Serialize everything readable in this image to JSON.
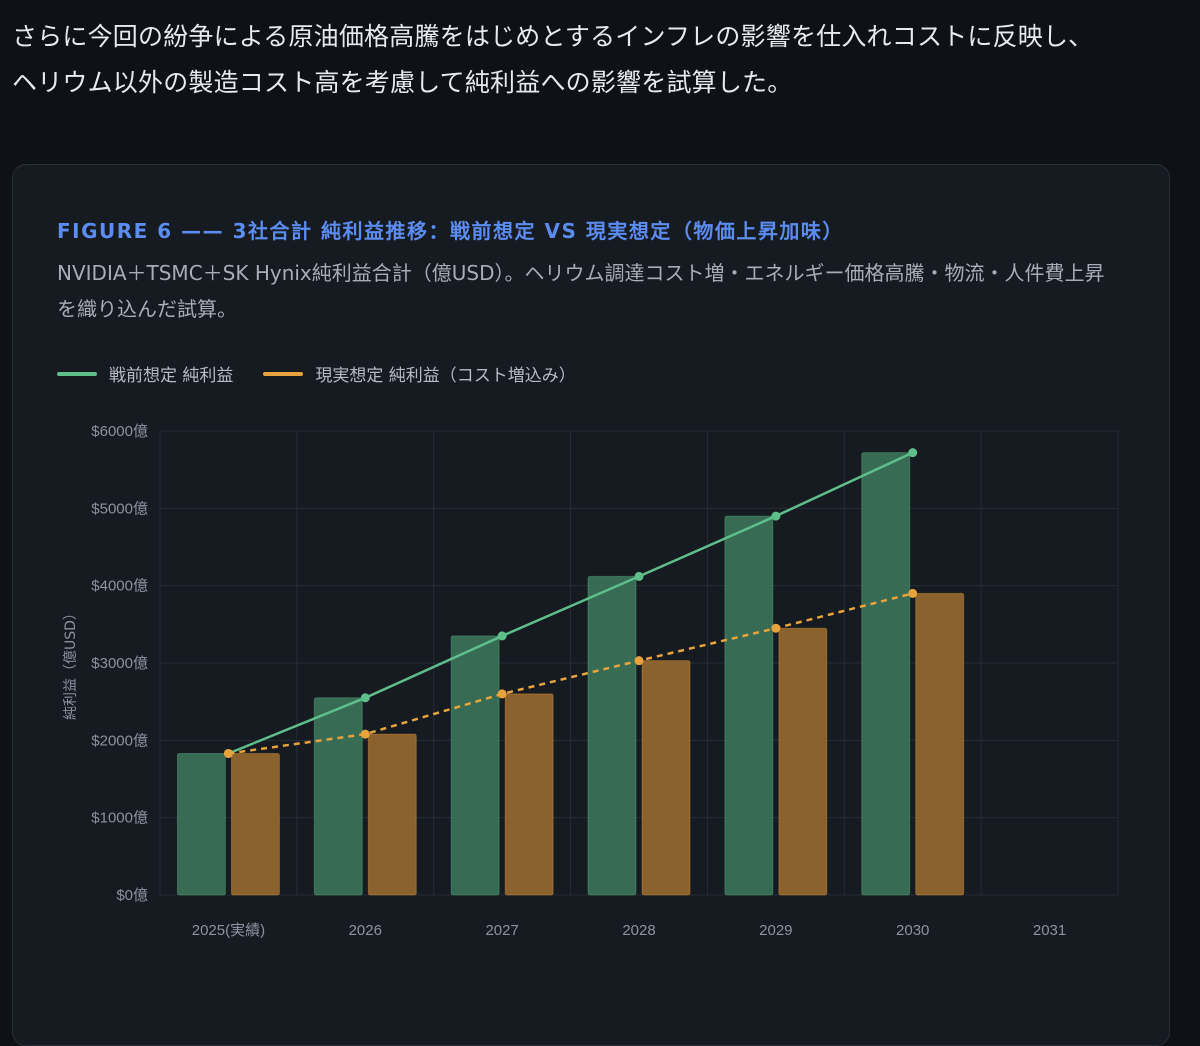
{
  "intro": {
    "line1": "さらに今回の紛争による原油価格高騰をはじめとするインフレの影響を仕入れコストに反映し、",
    "line2": "ヘリウム以外の製造コスト高を考慮して純利益への影響を試算した。"
  },
  "figure": {
    "title": "FIGURE 6 —— 3社合計 純利益推移：戦前想定 VS 現実想定（物価上昇加味）",
    "subtitle": "NVIDIA＋TSMC＋SK Hynix純利益合計（億USD）。ヘリウム調達コスト増・エネルギー価格高騰・物流・人件費上昇を織り込んだ試算。"
  },
  "colors": {
    "prewar_bar": "#3d7a5c",
    "prewar_line": "#5fbf8a",
    "real_bar": "#a06f30",
    "real_line": "#e8a43c",
    "grid": "#272c35"
  },
  "chart_data": {
    "type": "bar",
    "categories": [
      "2025(実績)",
      "2026",
      "2027",
      "2028",
      "2029",
      "2030",
      "2031"
    ],
    "series": [
      {
        "name": "戦前想定 純利益",
        "values": [
          1830,
          2550,
          3350,
          4120,
          4900,
          5720,
          null
        ],
        "overlay_line": true,
        "line_style": "solid"
      },
      {
        "name": "現実想定 純利益（コスト増込み）",
        "values": [
          1830,
          2080,
          2600,
          3030,
          3450,
          3900,
          null
        ],
        "overlay_line": true,
        "line_style": "dashed"
      }
    ],
    "ylabel": "純利益（億USD）",
    "ylim": [
      0,
      6000
    ],
    "yticks": [
      "$0億",
      "$1000億",
      "$2000億",
      "$3000億",
      "$4000億",
      "$5000億",
      "$6000億"
    ],
    "grid": true,
    "legend_position": "top-left"
  }
}
